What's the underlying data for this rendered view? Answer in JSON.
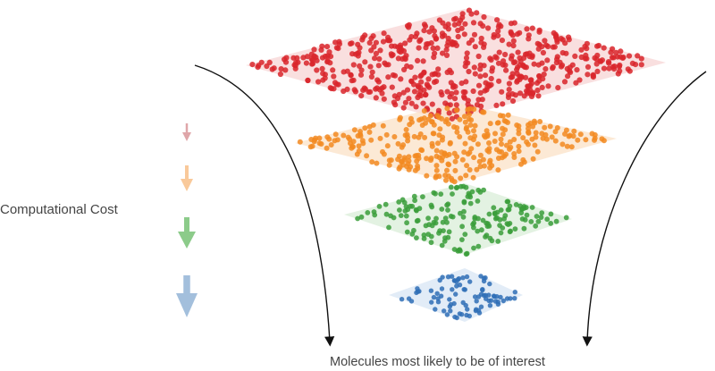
{
  "labels": {
    "cost": "Computational Cost",
    "bottom": "Molecules most likely to be of interest"
  },
  "layers": [
    {
      "name": "layer-red",
      "point_color": "#d9262c",
      "plane_color": "#f7d4d4"
    },
    {
      "name": "layer-orange",
      "point_color": "#f28a21",
      "plane_color": "#fbe1c7"
    },
    {
      "name": "layer-green",
      "point_color": "#3a9e3a",
      "plane_color": "#d9eed8"
    },
    {
      "name": "layer-blue",
      "point_color": "#2f6fb6",
      "plane_color": "#d8e6f4"
    }
  ],
  "cost_arrows": [
    {
      "name": "arrow-red",
      "color": "#dfa6a9"
    },
    {
      "name": "arrow-orange",
      "color": "#f9c99a"
    },
    {
      "name": "arrow-green",
      "color": "#8ccb8a"
    },
    {
      "name": "arrow-blue",
      "color": "#a3bfdc"
    }
  ],
  "funnel_line_color": "#111111"
}
